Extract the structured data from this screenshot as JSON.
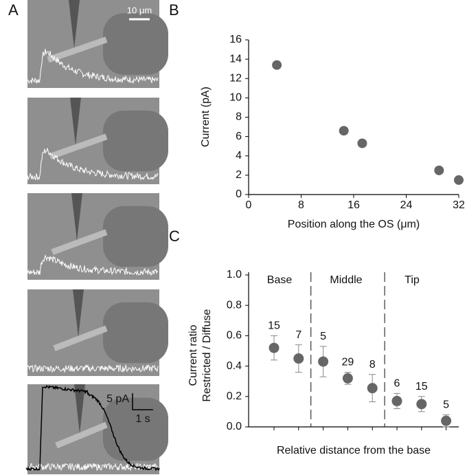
{
  "panel_labels": [
    "A",
    "B",
    "C"
  ],
  "panel_a": {
    "scale_bar_length": "10 μm",
    "scale_bar_current": "5 pA",
    "scale_bar_time": "1 s"
  },
  "chart_data": [
    {
      "type": "scatter",
      "x": [
        4.3,
        14.5,
        17.3,
        29,
        32
      ],
      "values": [
        13.4,
        6.6,
        5.3,
        2.5,
        1.5
      ],
      "color": "#666666",
      "xlim": [
        0,
        32
      ],
      "ylim": [
        0,
        16
      ],
      "xticks": [
        0,
        8,
        16,
        24,
        32
      ],
      "yticks": [
        0,
        2,
        4,
        6,
        8,
        10,
        12,
        14,
        16
      ],
      "xlabel": "Position along the OS (μm)",
      "ylabel": "Current (pA)"
    },
    {
      "type": "errorbar",
      "categories": [
        null,
        null,
        null,
        null,
        null,
        null,
        null,
        null
      ],
      "values": [
        0.52,
        0.45,
        0.43,
        0.32,
        0.255,
        0.17,
        0.15,
        0.04
      ],
      "yerr": [
        0.08,
        0.09,
        0.1,
        0.04,
        0.09,
        0.05,
        0.05,
        0.04
      ],
      "n": [
        15,
        7,
        5,
        29,
        8,
        6,
        15,
        5
      ],
      "color": "#666666",
      "ylim": [
        0,
        1
      ],
      "yticks": [
        {
          "value": 0,
          "label": "0.0"
        },
        0.2,
        0.4,
        0.6,
        0.8,
        {
          "value": 1,
          "label": "1.0"
        }
      ],
      "regions": [
        "Base",
        "Middle",
        "Tip"
      ],
      "xlabel": "Relative distance from the base",
      "ylabel": [
        "Current ratio",
        "Restricted / Diffuse"
      ]
    }
  ]
}
